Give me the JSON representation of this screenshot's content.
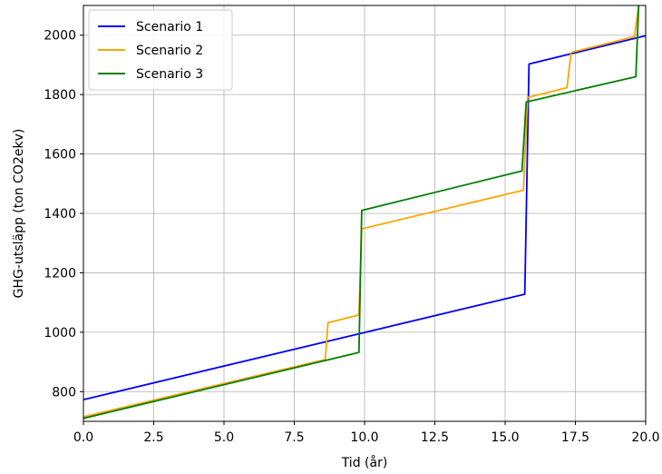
{
  "chart_data": {
    "type": "line",
    "title": "",
    "xlabel": "Tid (år)",
    "ylabel": "GHG-utsläpp (ton CO2ekv)",
    "xlim": [
      0,
      20
    ],
    "ylim": [
      700,
      2100
    ],
    "xticks": [
      0,
      2.5,
      5,
      7.5,
      10,
      12.5,
      15,
      17.5,
      20
    ],
    "xtick_labels": [
      "0.0",
      "2.5",
      "5.0",
      "7.5",
      "10.0",
      "12.5",
      "15.0",
      "17.5",
      "20.0"
    ],
    "yticks": [
      800,
      1000,
      1200,
      1400,
      1600,
      1800,
      2000
    ],
    "ytick_labels": [
      "800",
      "1000",
      "1200",
      "1400",
      "1600",
      "1800",
      "2000"
    ],
    "grid": true,
    "legend_position": "top-left",
    "series": [
      {
        "name": "Scenario 1",
        "color": "#0000ff",
        "x": [
          0,
          15.7,
          15.85,
          20
        ],
        "y": [
          773,
          1128,
          1903,
          1998
        ]
      },
      {
        "name": "Scenario 2",
        "color": "#ffa500",
        "x": [
          0,
          8.6,
          8.7,
          9.8,
          9.9,
          15.65,
          15.8,
          17.2,
          17.35,
          19.6,
          19.75
        ],
        "y": [
          715,
          908,
          1032,
          1058,
          1348,
          1478,
          1790,
          1823,
          1942,
          1995,
          2100
        ]
      },
      {
        "name": "Scenario 3",
        "color": "#008000",
        "x": [
          0,
          9.8,
          9.9,
          15.6,
          15.75,
          19.65,
          19.75
        ],
        "y": [
          710,
          932,
          1410,
          1543,
          1775,
          1860,
          2100
        ]
      }
    ]
  }
}
